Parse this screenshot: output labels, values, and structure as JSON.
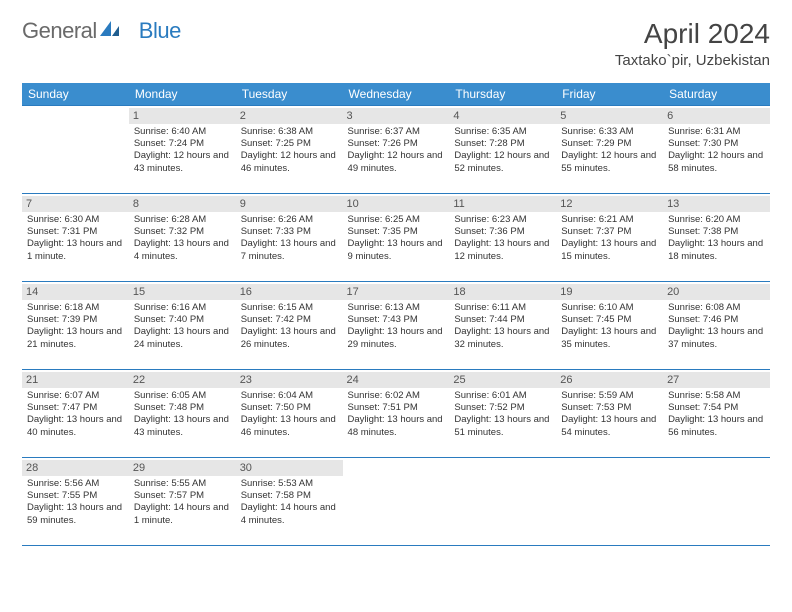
{
  "logo": {
    "text_general": "General",
    "text_blue": "Blue"
  },
  "title": "April 2024",
  "location": "Taxtako`pir, Uzbekistan",
  "colors": {
    "header_bg": "#3a8dce",
    "header_text": "#ffffff",
    "daynum_bg": "#e6e6e6",
    "daynum_text": "#555555",
    "border": "#2a7bbf",
    "body_text": "#333333",
    "page_bg": "#ffffff",
    "logo_gray": "#6a6a6a",
    "logo_blue": "#2a7bbf"
  },
  "weekdays": [
    "Sunday",
    "Monday",
    "Tuesday",
    "Wednesday",
    "Thursday",
    "Friday",
    "Saturday"
  ],
  "weeks": [
    [
      null,
      {
        "n": "1",
        "sunrise": "6:40 AM",
        "sunset": "7:24 PM",
        "daylight": "12 hours and 43 minutes."
      },
      {
        "n": "2",
        "sunrise": "6:38 AM",
        "sunset": "7:25 PM",
        "daylight": "12 hours and 46 minutes."
      },
      {
        "n": "3",
        "sunrise": "6:37 AM",
        "sunset": "7:26 PM",
        "daylight": "12 hours and 49 minutes."
      },
      {
        "n": "4",
        "sunrise": "6:35 AM",
        "sunset": "7:28 PM",
        "daylight": "12 hours and 52 minutes."
      },
      {
        "n": "5",
        "sunrise": "6:33 AM",
        "sunset": "7:29 PM",
        "daylight": "12 hours and 55 minutes."
      },
      {
        "n": "6",
        "sunrise": "6:31 AM",
        "sunset": "7:30 PM",
        "daylight": "12 hours and 58 minutes."
      }
    ],
    [
      {
        "n": "7",
        "sunrise": "6:30 AM",
        "sunset": "7:31 PM",
        "daylight": "13 hours and 1 minute."
      },
      {
        "n": "8",
        "sunrise": "6:28 AM",
        "sunset": "7:32 PM",
        "daylight": "13 hours and 4 minutes."
      },
      {
        "n": "9",
        "sunrise": "6:26 AM",
        "sunset": "7:33 PM",
        "daylight": "13 hours and 7 minutes."
      },
      {
        "n": "10",
        "sunrise": "6:25 AM",
        "sunset": "7:35 PM",
        "daylight": "13 hours and 9 minutes."
      },
      {
        "n": "11",
        "sunrise": "6:23 AM",
        "sunset": "7:36 PM",
        "daylight": "13 hours and 12 minutes."
      },
      {
        "n": "12",
        "sunrise": "6:21 AM",
        "sunset": "7:37 PM",
        "daylight": "13 hours and 15 minutes."
      },
      {
        "n": "13",
        "sunrise": "6:20 AM",
        "sunset": "7:38 PM",
        "daylight": "13 hours and 18 minutes."
      }
    ],
    [
      {
        "n": "14",
        "sunrise": "6:18 AM",
        "sunset": "7:39 PM",
        "daylight": "13 hours and 21 minutes."
      },
      {
        "n": "15",
        "sunrise": "6:16 AM",
        "sunset": "7:40 PM",
        "daylight": "13 hours and 24 minutes."
      },
      {
        "n": "16",
        "sunrise": "6:15 AM",
        "sunset": "7:42 PM",
        "daylight": "13 hours and 26 minutes."
      },
      {
        "n": "17",
        "sunrise": "6:13 AM",
        "sunset": "7:43 PM",
        "daylight": "13 hours and 29 minutes."
      },
      {
        "n": "18",
        "sunrise": "6:11 AM",
        "sunset": "7:44 PM",
        "daylight": "13 hours and 32 minutes."
      },
      {
        "n": "19",
        "sunrise": "6:10 AM",
        "sunset": "7:45 PM",
        "daylight": "13 hours and 35 minutes."
      },
      {
        "n": "20",
        "sunrise": "6:08 AM",
        "sunset": "7:46 PM",
        "daylight": "13 hours and 37 minutes."
      }
    ],
    [
      {
        "n": "21",
        "sunrise": "6:07 AM",
        "sunset": "7:47 PM",
        "daylight": "13 hours and 40 minutes."
      },
      {
        "n": "22",
        "sunrise": "6:05 AM",
        "sunset": "7:48 PM",
        "daylight": "13 hours and 43 minutes."
      },
      {
        "n": "23",
        "sunrise": "6:04 AM",
        "sunset": "7:50 PM",
        "daylight": "13 hours and 46 minutes."
      },
      {
        "n": "24",
        "sunrise": "6:02 AM",
        "sunset": "7:51 PM",
        "daylight": "13 hours and 48 minutes."
      },
      {
        "n": "25",
        "sunrise": "6:01 AM",
        "sunset": "7:52 PM",
        "daylight": "13 hours and 51 minutes."
      },
      {
        "n": "26",
        "sunrise": "5:59 AM",
        "sunset": "7:53 PM",
        "daylight": "13 hours and 54 minutes."
      },
      {
        "n": "27",
        "sunrise": "5:58 AM",
        "sunset": "7:54 PM",
        "daylight": "13 hours and 56 minutes."
      }
    ],
    [
      {
        "n": "28",
        "sunrise": "5:56 AM",
        "sunset": "7:55 PM",
        "daylight": "13 hours and 59 minutes."
      },
      {
        "n": "29",
        "sunrise": "5:55 AM",
        "sunset": "7:57 PM",
        "daylight": "14 hours and 1 minute."
      },
      {
        "n": "30",
        "sunrise": "5:53 AM",
        "sunset": "7:58 PM",
        "daylight": "14 hours and 4 minutes."
      },
      null,
      null,
      null,
      null
    ]
  ],
  "labels": {
    "sunrise": "Sunrise:",
    "sunset": "Sunset:",
    "daylight": "Daylight:"
  }
}
